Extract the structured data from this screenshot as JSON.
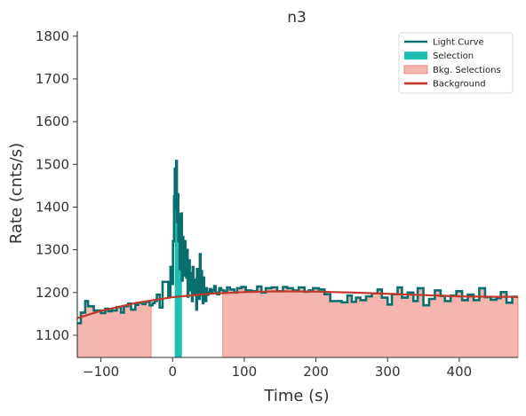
{
  "chart_data": {
    "type": "line",
    "title": "n3",
    "xlabel": "Time (s)",
    "ylabel": "Rate (cnts/s)",
    "xlim": [
      -133,
      482
    ],
    "ylim": [
      1048,
      1812
    ],
    "xticks": [
      -100,
      0,
      100,
      200,
      300,
      400
    ],
    "xtick_labels": [
      "−100",
      "0",
      "100",
      "200",
      "300",
      "400"
    ],
    "yticks": [
      1100,
      1200,
      1300,
      1400,
      1500,
      1600,
      1700,
      1800
    ],
    "ytick_labels": [
      "1100",
      "1200",
      "1300",
      "1400",
      "1500",
      "1600",
      "1700",
      "1800"
    ],
    "grid": false,
    "legend_position": "top-right",
    "legend": [
      {
        "label": "Light Curve",
        "kind": "line",
        "color": "#0b6e6e"
      },
      {
        "label": "Selection",
        "kind": "patch",
        "color": "#1ebfb3"
      },
      {
        "label": "Bkg. Selections",
        "kind": "patch",
        "color": "#f4b6ae"
      },
      {
        "label": "Background",
        "kind": "line",
        "color": "#c0392b"
      }
    ],
    "bkg_selections": [
      [
        -133,
        -30
      ],
      [
        70,
        482
      ]
    ],
    "selection": [
      3,
      13
    ],
    "background_fit": {
      "x": [
        -133,
        -100,
        -50,
        0,
        50,
        100,
        150,
        200,
        250,
        300,
        350,
        400,
        450,
        482
      ],
      "y": [
        1140,
        1157,
        1176,
        1189,
        1197,
        1201,
        1203,
        1202,
        1200,
        1197,
        1194,
        1191,
        1190,
        1190
      ]
    },
    "light_curve": {
      "x": [
        -133,
        -128,
        -122,
        -118,
        -110,
        -100,
        -94,
        -90,
        -85,
        -78,
        -72,
        -68,
        -62,
        -58,
        -52,
        -48,
        -42,
        -38,
        -32,
        -28,
        -25,
        -22,
        -18,
        -14,
        -10,
        -6,
        -3,
        -1,
        0.5,
        2,
        3,
        4,
        5,
        6,
        7,
        8,
        9,
        10,
        11,
        12,
        13,
        14,
        15,
        16,
        17,
        18,
        19,
        20,
        21,
        22,
        23,
        24,
        25,
        26,
        27,
        28,
        29,
        30,
        31,
        32,
        33,
        34,
        35,
        36,
        37,
        38,
        39,
        40,
        41,
        42,
        43,
        44,
        45,
        46,
        47,
        48,
        50,
        52,
        54,
        56,
        58,
        60,
        62,
        65,
        68,
        72,
        76,
        80,
        86,
        90,
        96,
        102,
        110,
        118,
        124,
        130,
        138,
        146,
        154,
        160,
        168,
        176,
        184,
        190,
        196,
        204,
        212,
        220,
        228,
        236,
        244,
        250,
        256,
        262,
        270,
        278,
        286,
        292,
        300,
        306,
        314,
        320,
        328,
        336,
        342,
        350,
        358,
        366,
        374,
        380,
        388,
        396,
        404,
        412,
        420,
        428,
        436,
        444,
        452,
        458,
        466,
        474,
        482
      ],
      "y": [
        1128,
        1153,
        1180,
        1168,
        1158,
        1152,
        1162,
        1156,
        1158,
        1166,
        1153,
        1168,
        1174,
        1160,
        1171,
        1176,
        1173,
        1178,
        1170,
        1175,
        1180,
        1195,
        1165,
        1225,
        1225,
        1190,
        1260,
        1220,
        1320,
        1425,
        1490,
        1395,
        1508,
        1365,
        1430,
        1320,
        1383,
        1255,
        1290,
        1385,
        1228,
        1330,
        1240,
        1265,
        1320,
        1240,
        1235,
        1300,
        1190,
        1215,
        1275,
        1225,
        1205,
        1245,
        1180,
        1260,
        1200,
        1220,
        1195,
        1230,
        1160,
        1255,
        1195,
        1210,
        1185,
        1290,
        1195,
        1250,
        1200,
        1175,
        1235,
        1190,
        1205,
        1180,
        1210,
        1195,
        1200,
        1208,
        1198,
        1205,
        1215,
        1200,
        1196,
        1210,
        1205,
        1202,
        1212,
        1207,
        1200,
        1210,
        1213,
        1205,
        1203,
        1214,
        1200,
        1210,
        1212,
        1203,
        1213,
        1210,
        1205,
        1212,
        1202,
        1205,
        1210,
        1207,
        1196,
        1180,
        1180,
        1177,
        1193,
        1178,
        1188,
        1182,
        1191,
        1198,
        1207,
        1188,
        1172,
        1196,
        1212,
        1188,
        1200,
        1180,
        1210,
        1170,
        1185,
        1205,
        1192,
        1180,
        1193,
        1203,
        1182,
        1195,
        1182,
        1210,
        1189,
        1183,
        1187,
        1201,
        1176,
        1190,
        1200
      ]
    }
  }
}
